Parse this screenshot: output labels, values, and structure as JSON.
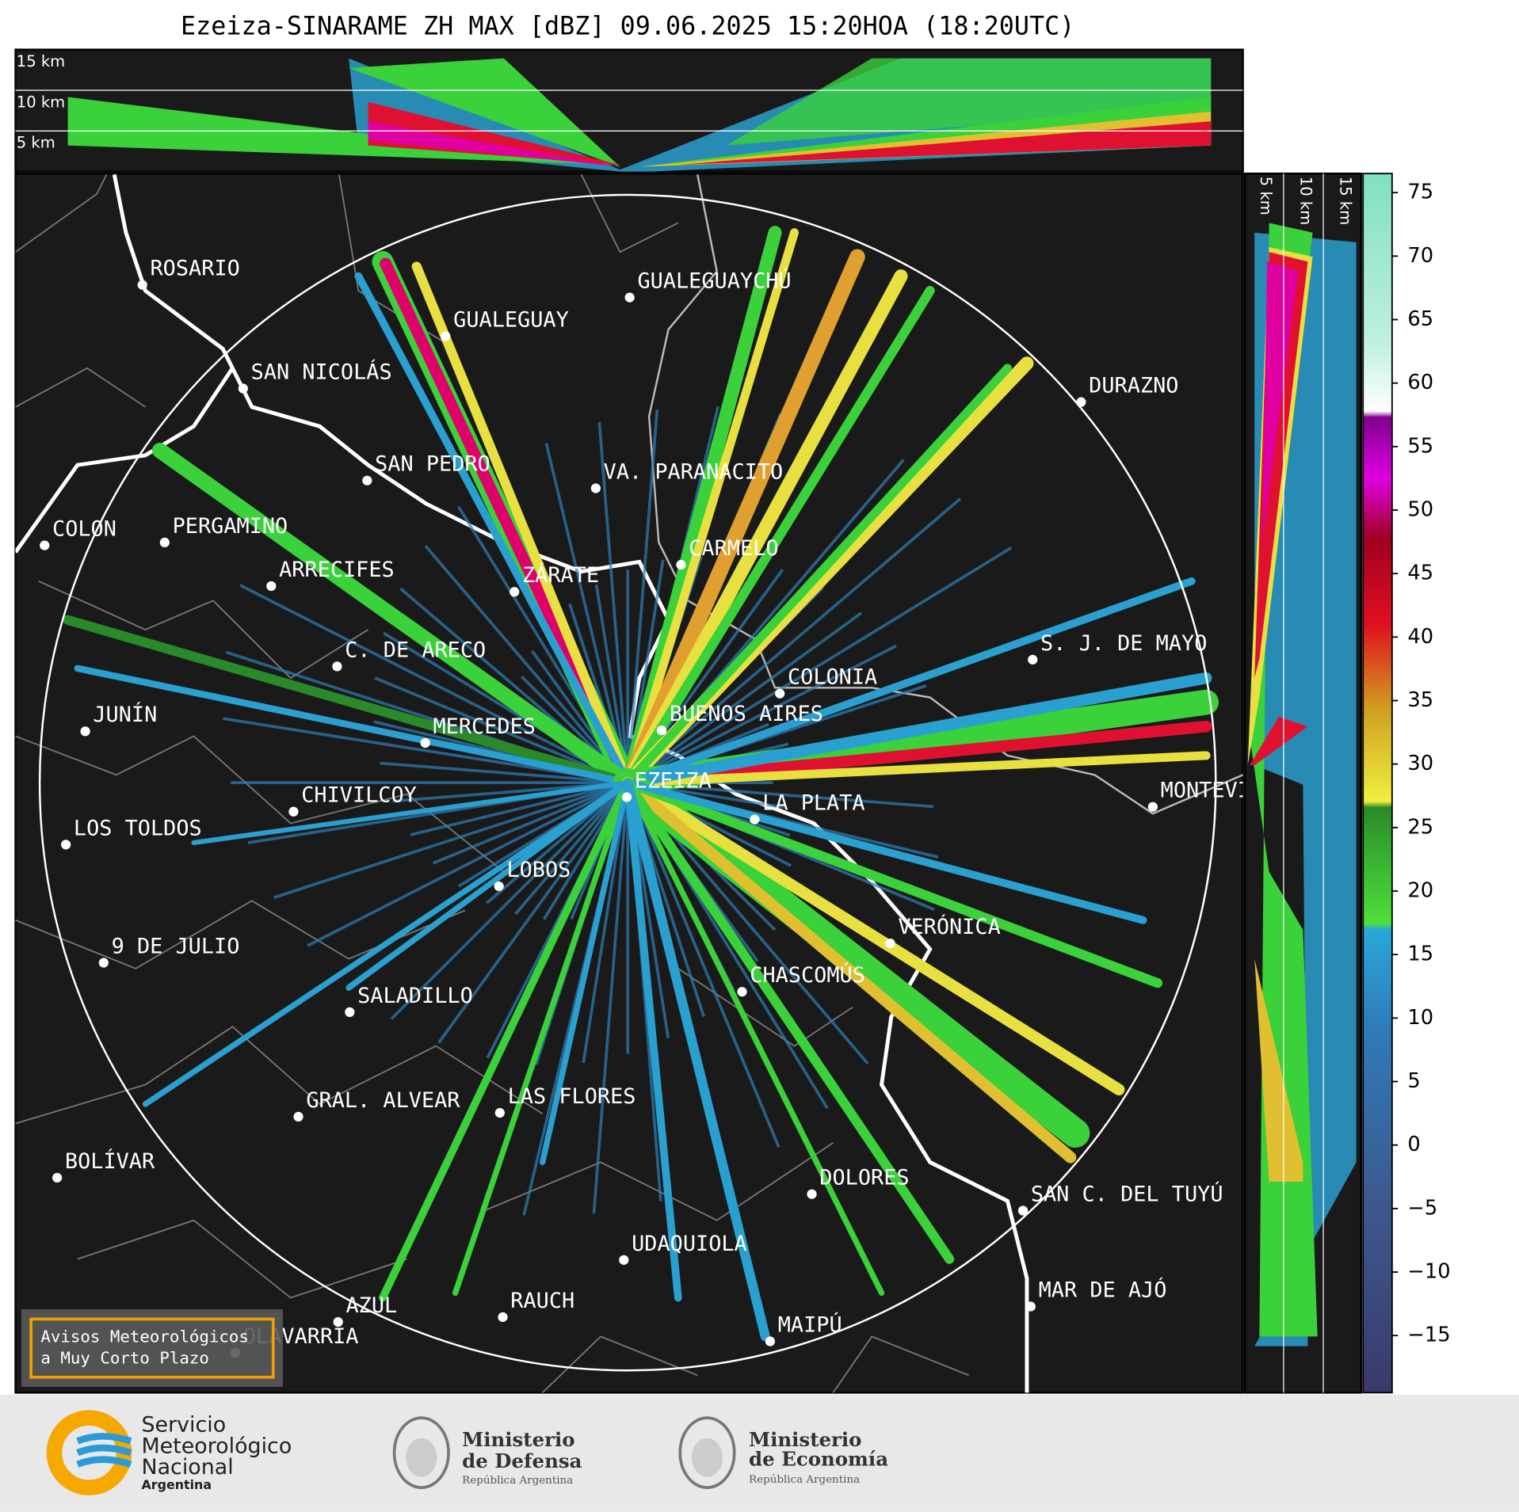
{
  "title": "Ezeiza-SINARAME ZH MAX [dBZ] 09.06.2025 15:20HOA (18:20UTC)",
  "top_panel": {
    "height_labels": [
      "15 km",
      "10 km",
      "5 km"
    ]
  },
  "side_panel": {
    "height_labels": [
      "5 km",
      "10 km",
      "15 km"
    ]
  },
  "colorbar": {
    "lim": [
      -19.5,
      76.5
    ],
    "ticks": [
      75,
      70,
      65,
      60,
      55,
      50,
      45,
      40,
      35,
      30,
      25,
      20,
      15,
      10,
      5,
      0,
      {
        "value": -5,
        "label": "−5"
      },
      {
        "value": -10,
        "label": "−10"
      },
      {
        "value": -15,
        "label": "−15"
      }
    ]
  },
  "cities": [
    "ROSARIO",
    "GUALEGUAYCHÚ",
    "GUALEGUAY",
    "SAN NICOLÁS",
    "DURAZNO",
    "SAN PEDRO",
    "VA. PARANACITO",
    "COLON",
    "PERGAMINO",
    "CARMELO",
    "ARRECIFES",
    "ZÁRATE",
    "C. DE ARECO",
    "S. J. DE MAYO",
    "COLONIA",
    "BUENOS AIRES",
    "JUNÍN",
    "MERCEDES",
    "EZEIZA",
    "MONTEVIDEO",
    "CHIVILCOY",
    "LA PLATA",
    "LOS TOLDOS",
    "LOBOS",
    "VERÓNICA",
    "9 DE JULIO",
    "CHASCOMÚS",
    "SALADILLO",
    "LAS FLORES",
    "GRAL. ALVEAR",
    "BOLÍVAR",
    "DOLORES",
    "SAN C. DEL TUYÚ",
    "UDAQUIOLA",
    "MAR DE AJÓ",
    "RAUCH",
    "AZUL",
    "OLAVARRÍA",
    "MAIPÚ"
  ],
  "warning_box": {
    "lines": [
      "Avisos Meteorológicos",
      "a Muy Corto Plazo"
    ]
  },
  "logos": [
    {
      "lines": [
        "Servicio",
        "Meteorológico",
        "Nacional",
        "Argentina"
      ]
    },
    {
      "lines": [
        "Ministerio",
        "de Defensa",
        "República Argentina"
      ]
    },
    {
      "lines": [
        "Ministerio",
        "de Economía",
        "República Argentina"
      ]
    }
  ]
}
